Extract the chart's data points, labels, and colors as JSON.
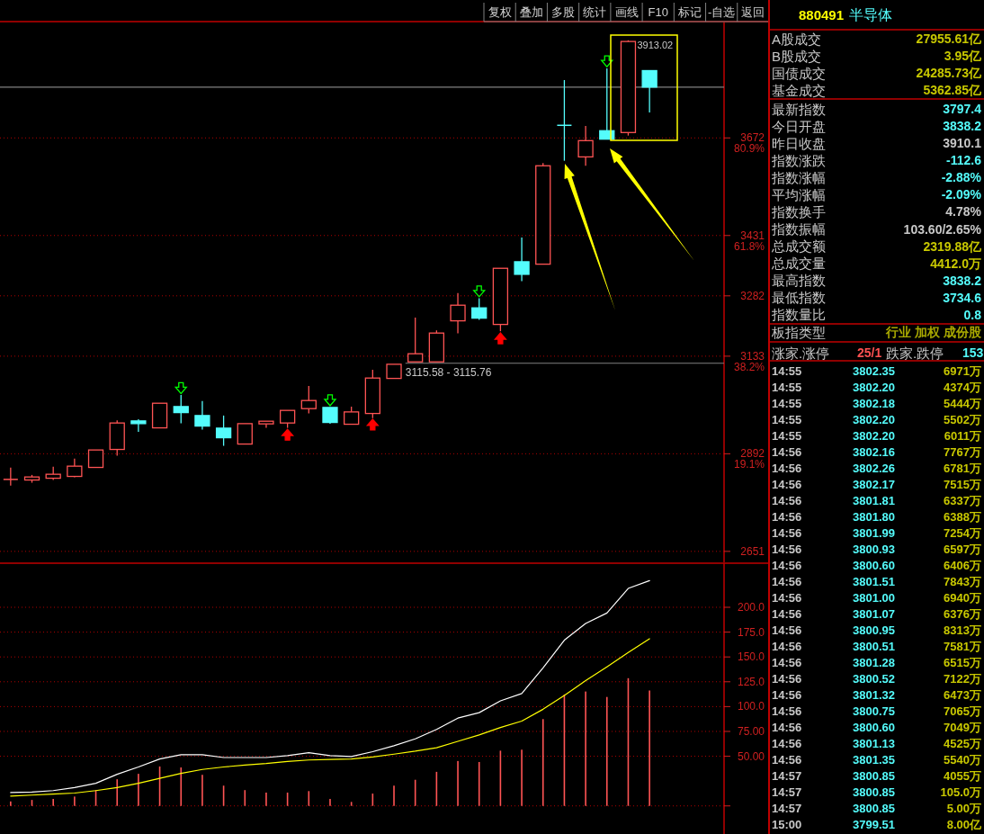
{
  "chart_data": [
    {
      "type": "candlestick",
      "categories": [
        null,
        null,
        null,
        null,
        null,
        null,
        null,
        null,
        null,
        null,
        null,
        null,
        null,
        null,
        null,
        null,
        null,
        null,
        null,
        null,
        null,
        null,
        null,
        null,
        null,
        null,
        null,
        null,
        null,
        null,
        null,
        null,
        null,
        null
      ],
      "ohlc": [
        [
          2828.7,
          2857.6,
          2813.2,
          2828.7
        ],
        [
          2827.2,
          2839.8,
          2820.5,
          2834.7
        ],
        [
          2831.6,
          2859.8,
          2827.2,
          2841.4
        ],
        [
          2836.1,
          2879.8,
          2833.8,
          2861.4
        ],
        [
          2858.3,
          2901.4,
          2858.3,
          2901.4
        ],
        [
          2902.7,
          2974.7,
          2887.1,
          2968
        ],
        [
          2973.1,
          2977.5,
          2946.4,
          2966.4
        ],
        [
          2956,
          3016.8,
          2956,
          3016.8
        ],
        [
          3008.6,
          3037.5,
          2967.1,
          2993.7
        ],
        [
          2986.4,
          3022,
          2951.6,
          2960.4
        ],
        [
          2955.3,
          2986.4,
          2911.6,
          2931.6
        ],
        [
          2916,
          2966.4,
          2916,
          2966.4
        ],
        [
          2965.8,
          2972.4,
          2956,
          2972.4
        ],
        [
          2968,
          2999.1,
          2956,
          2999.1
        ],
        [
          3003.5,
          3059.7,
          2991.5,
          3023.5
        ],
        [
          3006.4,
          3006.4,
          2966.4,
          2969.3
        ],
        [
          2964.9,
          3008.6,
          2964.9,
          2995.3
        ],
        [
          2991.5,
          3099.7,
          2979.8,
          3079
        ],
        [
          3078.1,
          3113,
          3078.1,
          3113
        ],
        [
          3119,
          3228.5,
          3119,
          3139
        ],
        [
          3119,
          3196.7,
          3119,
          3190.1
        ],
        [
          3220.3,
          3289.1,
          3189.2,
          3258.9
        ],
        [
          3252.3,
          3275.8,
          3222.5,
          3226.9
        ],
        [
          3211.4,
          3350,
          3194.5,
          3350
        ],
        [
          3366.2,
          3426.2,
          3318,
          3335.1
        ],
        [
          3360.2,
          3609.8,
          3360.2,
          3603.2
        ],
        [
          3703.1,
          3814.8,
          3615.6,
          3703.1
        ],
        [
          3625.1,
          3701.5,
          3603.2,
          3665.3
        ],
        [
          3689.8,
          3843.7,
          3668.9,
          3668.9
        ],
        [
          3685.3,
          3913.02,
          3677.8,
          3910.1
        ],
        [
          3838.2,
          3838.2,
          3734.6,
          3797.4
        ],
        null,
        null,
        null
      ],
      "colors": [
        "#ff5454",
        "#ff5454",
        "#ff5454",
        "#ff5454",
        "#ff5454",
        "#ff5454",
        "#54fcfc",
        "#ff5454",
        "#54fcfc",
        "#54fcfc",
        "#54fcfc",
        "#ff5454",
        "#ff5454",
        "#ff5454",
        "#ff5454",
        "#54fcfc",
        "#ff5454",
        "#ff5454",
        "#ff5454",
        "#ff5454",
        "#ff5454",
        "#ff5454",
        "#54fcfc",
        "#ff5454",
        "#54fcfc",
        "#ff5454",
        "#54fcfc",
        "#ff5454",
        "#54fcfc",
        "#ff5454",
        "#54fcfc",
        null,
        null,
        null
      ],
      "series": [
        {
          "type": "scatter",
          "color": "#00ff00",
          "values": [
            null,
            null,
            null,
            null,
            null,
            null,
            null,
            null,
            3054,
            null,
            null,
            null,
            null,
            null,
            null,
            3024,
            null,
            null,
            null,
            null,
            null,
            null,
            3293,
            null,
            null,
            null,
            null,
            null,
            3861,
            null,
            null,
            null,
            null,
            null
          ]
        },
        {
          "type": "scatter",
          "color": "#ff0000",
          "values": [
            null,
            null,
            null,
            null,
            null,
            null,
            null,
            null,
            null,
            null,
            null,
            null,
            null,
            2939,
            null,
            null,
            null,
            2964,
            null,
            null,
            null,
            null,
            null,
            3177,
            null,
            null,
            null,
            null,
            null,
            null,
            null,
            null,
            null,
            null
          ]
        }
      ],
      "ylim": [
        2624,
        3957
      ],
      "yticks": [
        2651,
        {
          "value": 2892,
          "label": "2892\n19.1%"
        },
        {
          "value": 3133,
          "label": "3133\n38.2%"
        },
        3282,
        {
          "value": 3431,
          "label": "3431\n61.8%"
        },
        {
          "value": 3672,
          "label": "3672\n80.9%"
        }
      ],
      "grid": "y",
      "tick_labels": "y",
      "ref_lines": [
        {
          "axis": "y",
          "value": 3797.4,
          "color": "#808080"
        },
        {
          "axis": "y",
          "value": 3115.58,
          "label": "3115.58 - 3115.76",
          "color": "#808080"
        }
      ],
      "annotations": [
        "3913.02"
      ]
    },
    {
      "type": "bar",
      "categories": [
        null,
        null,
        null,
        null,
        null,
        null,
        null,
        null,
        null,
        null,
        null,
        null,
        null,
        null,
        null,
        null,
        null,
        null,
        null,
        null,
        null,
        null,
        null,
        null,
        null,
        null,
        null,
        null,
        null,
        null,
        null,
        null,
        null,
        null
      ],
      "series": [
        {
          "type": "bar",
          "color": "#ff5454",
          "values": [
            4.5,
            6.0,
            7.0,
            9.4,
            15.9,
            26.8,
            32.3,
            39.7,
            38.7,
            31.3,
            20.4,
            15.9,
            13.4,
            13.4,
            14.9,
            7.0,
            4.0,
            12.4,
            20.4,
            26.3,
            34.3,
            45.2,
            44.2,
            55.6,
            56.6,
            87.4,
            112.2,
            115.2,
            109.7,
            128.6,
            116.2,
            null,
            null,
            null
          ]
        },
        {
          "type": "line",
          "color": "#ffffff",
          "values": [
            13.4,
            13.9,
            15.4,
            18.4,
            22.8,
            31.8,
            39.2,
            47.2,
            51.6,
            51.6,
            48.7,
            48.7,
            48.7,
            50.7,
            53.6,
            50.7,
            49.7,
            54.6,
            60.6,
            67.5,
            77,
            88.4,
            93.9,
            105.8,
            113.2,
            139,
            166.9,
            183.7,
            194.2,
            219,
            226.9,
            null,
            null,
            null
          ]
        },
        {
          "type": "line",
          "color": "#ffff00",
          "values": [
            9.9,
            10.9,
            11.9,
            12.9,
            15.4,
            18.4,
            22.8,
            27.8,
            32.8,
            36.7,
            39.2,
            41.2,
            42.7,
            44.7,
            46.2,
            46.7,
            47.2,
            49.2,
            52.1,
            55.1,
            58.6,
            65,
            71.5,
            79,
            85.4,
            97.3,
            111.2,
            126.1,
            140,
            154.4,
            168.3,
            null,
            null,
            null
          ]
        }
      ],
      "ylim": [
        -28.3,
        244.4
      ],
      "yticks": [
        {
          "value": 0,
          "label": null
        },
        {
          "value": 50,
          "label": "50.00"
        },
        {
          "value": 75,
          "label": "75.00"
        },
        {
          "value": 100,
          "label": "100.0"
        },
        {
          "value": 125,
          "label": "125.0"
        },
        {
          "value": 150,
          "label": "150.0"
        },
        {
          "value": 175,
          "label": "175.0"
        },
        {
          "value": 200,
          "label": "200.0"
        }
      ],
      "grid": "y",
      "tick_labels": "y"
    },
    {
      "type": "other",
      "annotations": [
        "复权",
        "叠加",
        "多股",
        "统计",
        "画线",
        "F10",
        "标记",
        "-自选",
        "返回"
      ]
    },
    {
      "type": "other",
      "annotations": [
        "880491",
        "半导体",
        "A股成交",
        "27955.61亿",
        "B股成交",
        "3.95亿",
        "国债成交",
        "24285.73亿",
        "基金成交",
        "5362.85亿",
        "最新指数",
        "3797.4",
        "今日开盘",
        "3838.2",
        "昨日收盘",
        "3910.1",
        "指数涨跌",
        "-112.6",
        "指数涨幅",
        "-2.88%",
        "平均涨幅",
        "-2.09%",
        "指数换手",
        "4.78%",
        "指数振幅",
        "103.60/2.65%",
        "总成交额",
        "2319.88亿",
        "总成交量",
        "4412.0万",
        "最高指数",
        "3838.2",
        "最低指数",
        "3734.6",
        "指数量比",
        "0.8",
        "板指类型",
        "行业 加权 成份股",
        "涨家.涨停",
        "25/1",
        "跌家.跌停",
        "153",
        "14:55",
        "3802.35",
        "6971万",
        "14:55",
        "3802.20",
        "4374万",
        "14:55",
        "3802.18",
        "5444万",
        "14:55",
        "3802.20",
        "5502万",
        "14:55",
        "3802.20",
        "6011万",
        "14:56",
        "3802.16",
        "7767万",
        "14:56",
        "3802.26",
        "6781万",
        "14:56",
        "3802.17",
        "7515万",
        "14:56",
        "3801.81",
        "6337万",
        "14:56",
        "3801.80",
        "6388万",
        "14:56",
        "3801.99",
        "7254万",
        "14:56",
        "3800.93",
        "6597万",
        "14:56",
        "3800.60",
        "6406万",
        "14:56",
        "3801.51",
        "7843万",
        "14:56",
        "3801.00",
        "6940万",
        "14:56",
        "3801.07",
        "6376万",
        "14:56",
        "3800.95",
        "8313万",
        "14:56",
        "3800.51",
        "7581万",
        "14:56",
        "3801.28",
        "6515万",
        "14:56",
        "3800.52",
        "7122万",
        "14:56",
        "3801.32",
        "6473万",
        "14:56",
        "3800.75",
        "7065万",
        "14:56",
        "3800.60",
        "7049万",
        "14:56",
        "3801.13",
        "4525万",
        "14:56",
        "3801.35",
        "5540万",
        "14:57",
        "3800.85",
        "4055万",
        "14:57",
        "3800.85",
        "105.0万",
        "14:57",
        "3800.85",
        "5.00万",
        "15:00",
        "3799.51",
        "8.00亿"
      ]
    }
  ]
}
